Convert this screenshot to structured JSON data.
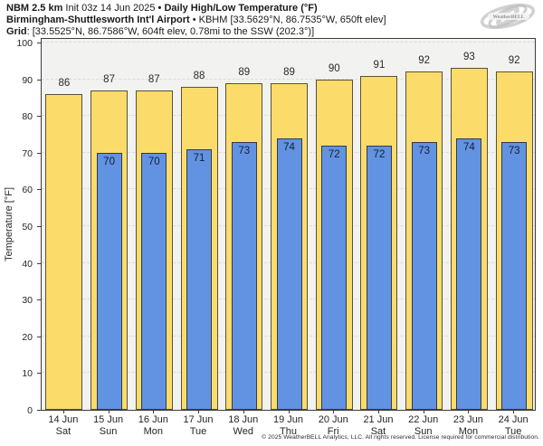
{
  "header": {
    "line1": {
      "model": "NBM 2.5 km",
      "init": " Init 03z 14 Jun 2025 ",
      "product": "• Daily High/Low Temperature (°F)"
    },
    "line2": {
      "station_bold": "Birmingham-Shuttlesworth Int'l Airport",
      "station_detail": " • KBHM [33.5629°N, 86.7535°W, 650ft elev]"
    },
    "line3": {
      "grid_bold": "Grid",
      "grid_detail": ": [33.5525°N, 86.7586°W, 604ft elev, 0.78mi to the SSW (202.3°)]"
    }
  },
  "logo": {
    "name": "WeatherBELL",
    "subtext": "Analytics LLC",
    "color": "#b9b9b9"
  },
  "chart_data": {
    "type": "bar",
    "title": "NBM 2.5 km Init 03z 14 Jun 2025 • Daily High/Low Temperature (°F)",
    "subtitle": "Birmingham-Shuttlesworth Int'l Airport • KBHM [33.5629°N, 86.7535°W, 650ft elev]",
    "categories": [
      {
        "date": "14 Jun",
        "day": "Sat"
      },
      {
        "date": "15 Jun",
        "day": "Sun"
      },
      {
        "date": "16 Jun",
        "day": "Mon"
      },
      {
        "date": "17 Jun",
        "day": "Tue"
      },
      {
        "date": "18 Jun",
        "day": "Wed"
      },
      {
        "date": "19 Jun",
        "day": "Thu"
      },
      {
        "date": "20 Jun",
        "day": "Fri"
      },
      {
        "date": "21 Jun",
        "day": "Sat"
      },
      {
        "date": "22 Jun",
        "day": "Sun"
      },
      {
        "date": "23 Jun",
        "day": "Mon"
      },
      {
        "date": "24 Jun",
        "day": "Tue"
      }
    ],
    "series": [
      {
        "name": "Daily High",
        "color": "#fbdc6b",
        "values": [
          86,
          87,
          87,
          88,
          89,
          89,
          90,
          91,
          92,
          93,
          92
        ]
      },
      {
        "name": "Daily Low",
        "color": "#6292e2",
        "values": [
          null,
          70,
          70,
          71,
          73,
          74,
          72,
          72,
          73,
          74,
          73
        ]
      }
    ],
    "xlabel": "",
    "ylabel": "Temperature [°F]",
    "ylim": [
      0,
      100
    ],
    "ytick_step": 10,
    "grid": "horizontal-dashed",
    "plot_background": "#f2f2f0",
    "legend": "none",
    "value_labels": "high above bar, low inside top of bar"
  },
  "footer": {
    "copyright": "© 2025 WeatherBELL Analytics, LLC. All rights reserved. License required for commercial distribution."
  }
}
